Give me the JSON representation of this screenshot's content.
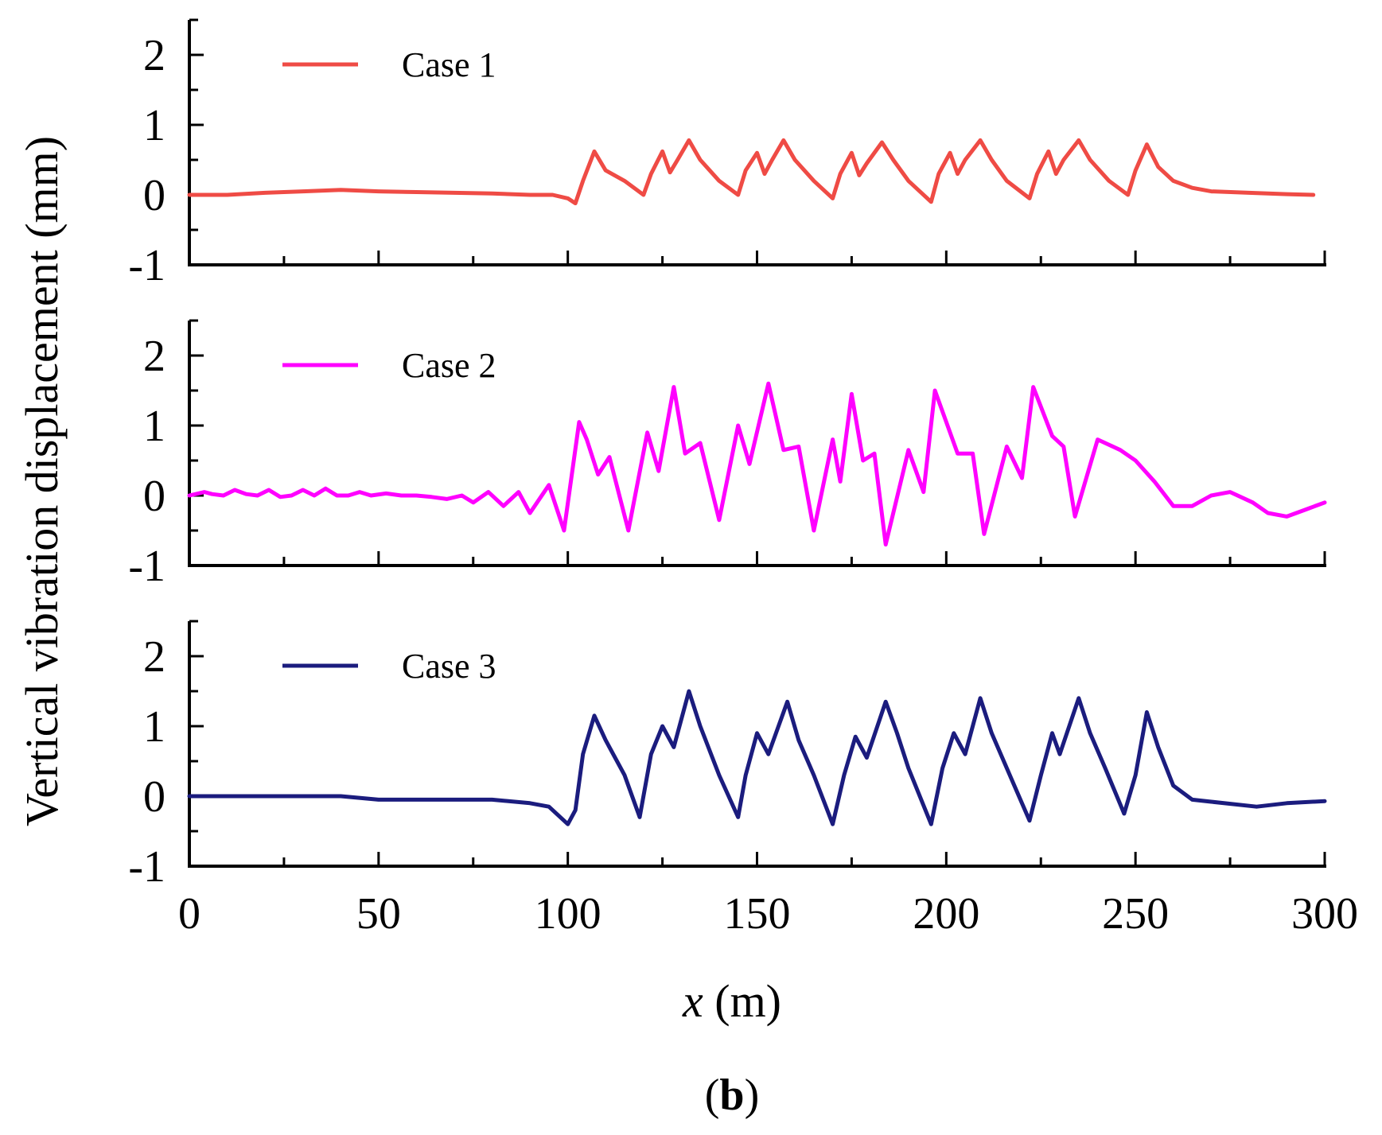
{
  "figure": {
    "ylabel": "Vertical vibration displacement (mm)",
    "xlabel_var": "x",
    "xlabel_unit": " (m)",
    "panel_label_open": "(",
    "panel_label_letter": "b",
    "panel_label_close": ")"
  },
  "chart_data": [
    {
      "type": "line",
      "name": "Case 1",
      "color": "#ef4b45",
      "xlim": [
        0,
        300
      ],
      "ylim": [
        -1,
        2.5
      ],
      "xticks": [
        0,
        50,
        100,
        150,
        200,
        250,
        300
      ],
      "yticks": [
        -1,
        0,
        1,
        2
      ],
      "ytick_labels": [
        "-1",
        "0",
        "1",
        "2"
      ],
      "xlabel": "x (m)",
      "ylabel": "Vertical vibration displacement (mm)",
      "legend": "top-left",
      "grid": false,
      "x": [
        0,
        10,
        20,
        30,
        40,
        50,
        60,
        70,
        80,
        90,
        96,
        100,
        102,
        104,
        107,
        110,
        115,
        120,
        122,
        125,
        127,
        129,
        132,
        135,
        140,
        145,
        147,
        150,
        152,
        154,
        157,
        160,
        165,
        170,
        172,
        175,
        177,
        179,
        183,
        186,
        190,
        196,
        198,
        201,
        203,
        205,
        209,
        212,
        216,
        222,
        224,
        227,
        229,
        231,
        235,
        238,
        243,
        248,
        250,
        253,
        256,
        260,
        265,
        270,
        280,
        290,
        297
      ],
      "values": [
        0.0,
        0.0,
        0.03,
        0.05,
        0.07,
        0.05,
        0.04,
        0.03,
        0.02,
        0.0,
        0.0,
        -0.05,
        -0.12,
        0.2,
        0.62,
        0.35,
        0.2,
        0.0,
        0.3,
        0.62,
        0.32,
        0.5,
        0.78,
        0.5,
        0.2,
        0.0,
        0.35,
        0.6,
        0.3,
        0.5,
        0.78,
        0.5,
        0.2,
        -0.05,
        0.3,
        0.6,
        0.28,
        0.45,
        0.75,
        0.5,
        0.2,
        -0.1,
        0.3,
        0.6,
        0.3,
        0.5,
        0.78,
        0.5,
        0.2,
        -0.05,
        0.3,
        0.62,
        0.3,
        0.5,
        0.78,
        0.5,
        0.2,
        0.0,
        0.35,
        0.72,
        0.4,
        0.2,
        0.1,
        0.05,
        0.03,
        0.01,
        0.0
      ]
    },
    {
      "type": "line",
      "name": "Case 2",
      "color": "#ff00ff",
      "xlim": [
        0,
        300
      ],
      "ylim": [
        -1,
        2.5
      ],
      "xticks": [
        0,
        50,
        100,
        150,
        200,
        250,
        300
      ],
      "yticks": [
        -1,
        0,
        1,
        2
      ],
      "ytick_labels": [
        "-1",
        "0",
        "1",
        "2"
      ],
      "xlabel": "x (m)",
      "ylabel": "Vertical vibration displacement (mm)",
      "legend": "top-left",
      "grid": false,
      "x": [
        0,
        4,
        6,
        9,
        12,
        15,
        18,
        21,
        24,
        27,
        30,
        33,
        36,
        39,
        42,
        45,
        48,
        52,
        56,
        60,
        64,
        68,
        72,
        75,
        79,
        83,
        87,
        90,
        95,
        99,
        103,
        105,
        108,
        111,
        116,
        121,
        124,
        128,
        131,
        135,
        140,
        145,
        148,
        153,
        157,
        161,
        165,
        170,
        172,
        175,
        178,
        181,
        184,
        190,
        194,
        197,
        203,
        207,
        210,
        216,
        220,
        223,
        228,
        231,
        234,
        240,
        246,
        250,
        255,
        260,
        265,
        270,
        275,
        281,
        285,
        290,
        295,
        300
      ],
      "values": [
        0.0,
        0.05,
        0.02,
        0.0,
        0.08,
        0.02,
        0.0,
        0.08,
        -0.02,
        0.0,
        0.08,
        0.0,
        0.1,
        0.0,
        0.0,
        0.05,
        0.0,
        0.03,
        0.0,
        0.0,
        -0.02,
        -0.05,
        0.0,
        -0.1,
        0.05,
        -0.15,
        0.05,
        -0.25,
        0.15,
        -0.5,
        1.05,
        0.8,
        0.3,
        0.55,
        -0.5,
        0.9,
        0.35,
        1.55,
        0.6,
        0.75,
        -0.35,
        1.0,
        0.45,
        1.6,
        0.65,
        0.7,
        -0.5,
        0.8,
        0.2,
        1.45,
        0.5,
        0.6,
        -0.7,
        0.65,
        0.05,
        1.5,
        0.6,
        0.6,
        -0.55,
        0.7,
        0.25,
        1.55,
        0.85,
        0.7,
        -0.3,
        0.8,
        0.65,
        0.5,
        0.2,
        -0.15,
        -0.15,
        0.0,
        0.05,
        -0.1,
        -0.25,
        -0.3,
        -0.2,
        -0.1
      ]
    },
    {
      "type": "line",
      "name": "Case 3",
      "color": "#1b1c7e",
      "xlim": [
        0,
        300
      ],
      "ylim": [
        -1,
        2.5
      ],
      "xticks": [
        0,
        50,
        100,
        150,
        200,
        250,
        300
      ],
      "yticks": [
        -1,
        0,
        1,
        2
      ],
      "ytick_labels": [
        "-1",
        "0",
        "1",
        "2"
      ],
      "xlabel": "x (m)",
      "ylabel": "Vertical vibration displacement (mm)",
      "legend": "top-left",
      "grid": false,
      "x": [
        0,
        20,
        40,
        50,
        60,
        70,
        80,
        90,
        95,
        100,
        102,
        104,
        107,
        110,
        115,
        119,
        122,
        125,
        128,
        132,
        135,
        140,
        145,
        147,
        150,
        153,
        158,
        161,
        165,
        170,
        173,
        176,
        179,
        184,
        187,
        190,
        196,
        199,
        202,
        205,
        209,
        212,
        216,
        222,
        225,
        228,
        230,
        235,
        238,
        242,
        247,
        250,
        253,
        256,
        260,
        265,
        270,
        282,
        290,
        300
      ],
      "values": [
        0.0,
        0.0,
        0.0,
        -0.05,
        -0.05,
        -0.05,
        -0.05,
        -0.1,
        -0.15,
        -0.4,
        -0.2,
        0.6,
        1.15,
        0.8,
        0.3,
        -0.3,
        0.6,
        1.0,
        0.7,
        1.5,
        1.0,
        0.3,
        -0.3,
        0.3,
        0.9,
        0.6,
        1.35,
        0.8,
        0.3,
        -0.4,
        0.3,
        0.85,
        0.55,
        1.35,
        0.9,
        0.4,
        -0.4,
        0.4,
        0.9,
        0.6,
        1.4,
        0.9,
        0.4,
        -0.35,
        0.3,
        0.9,
        0.6,
        1.4,
        0.9,
        0.4,
        -0.25,
        0.3,
        1.2,
        0.7,
        0.15,
        -0.05,
        -0.08,
        -0.15,
        -0.1,
        -0.07
      ]
    }
  ]
}
